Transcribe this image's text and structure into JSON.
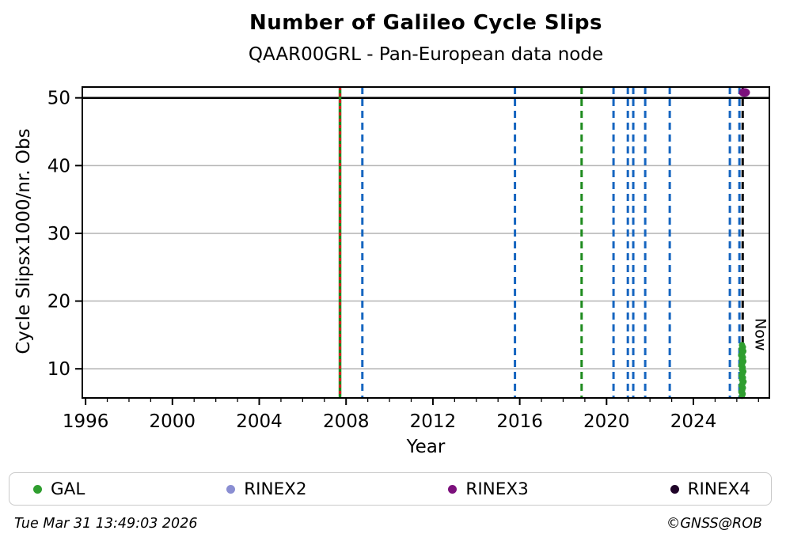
{
  "header": {
    "title": "Number of Galileo Cycle Slips",
    "subtitle": "QAAR00GRL - Pan-European data node"
  },
  "footer": {
    "timestamp": "Tue Mar 31 13:49:03 2026",
    "credit": "©GNSS@ROB"
  },
  "legend": [
    {
      "label": "GAL",
      "color": "#2f9e2f"
    },
    {
      "label": "RINEX2",
      "color": "#8a8ed2"
    },
    {
      "label": "RINEX3",
      "color": "#7c107c"
    },
    {
      "label": "RINEX4",
      "color": "#1f0328"
    }
  ],
  "chart_data": {
    "type": "scatter",
    "title": "Number of Galileo Cycle Slips",
    "subtitle": "QAAR00GRL - Pan-European data node",
    "xlabel": "Year",
    "ylabel": "Cycle Slipsx1000/nr. Obs",
    "xlim": [
      1995.85,
      2027.5
    ],
    "ylim": [
      5.7,
      51.6
    ],
    "xticks": [
      1996,
      2000,
      2004,
      2008,
      2012,
      2016,
      2020,
      2024
    ],
    "yticks": [
      10,
      20,
      30,
      40,
      50
    ],
    "minor_x_step": 1,
    "grid": "horizontal",
    "grid_color": "#b3b3b3",
    "axis_color": "#000000",
    "hline": {
      "y": 50,
      "color": "#000000",
      "width": 2.5
    },
    "now_line": {
      "x": 2026.27,
      "label": "Now",
      "color": "#000000",
      "style": "dashed",
      "width": 3
    },
    "event_lines": [
      {
        "x": 2007.72,
        "color": "#1e8b1e",
        "style": "solid",
        "width": 3.5
      },
      {
        "x": 2007.72,
        "color": "#d62121",
        "style": "dotted",
        "width": 3
      },
      {
        "x": 2008.75,
        "color": "#1565c0",
        "style": "dashed",
        "width": 3
      },
      {
        "x": 2015.78,
        "color": "#1565c0",
        "style": "dashed",
        "width": 3
      },
      {
        "x": 2018.85,
        "color": "#1e8b1e",
        "style": "dashed",
        "width": 3
      },
      {
        "x": 2020.32,
        "color": "#1565c0",
        "style": "dashed",
        "width": 3
      },
      {
        "x": 2020.98,
        "color": "#1565c0",
        "style": "dashed",
        "width": 3
      },
      {
        "x": 2021.23,
        "color": "#1565c0",
        "style": "dashed",
        "width": 3
      },
      {
        "x": 2021.78,
        "color": "#1565c0",
        "style": "dashed",
        "width": 3
      },
      {
        "x": 2022.91,
        "color": "#1565c0",
        "style": "dashed",
        "width": 3
      },
      {
        "x": 2025.68,
        "color": "#1565c0",
        "style": "dashed",
        "width": 3
      },
      {
        "x": 2026.12,
        "color": "#1565c0",
        "style": "dashed",
        "width": 3
      }
    ],
    "series": [
      {
        "name": "GAL",
        "color": "#2f9e2f",
        "marker": "circle",
        "points": [
          [
            2026.24,
            13.5
          ],
          [
            2026.28,
            13.2
          ],
          [
            2026.22,
            12.9
          ],
          [
            2026.3,
            12.6
          ],
          [
            2026.25,
            12.3
          ],
          [
            2026.2,
            12.0
          ],
          [
            2026.28,
            11.7
          ],
          [
            2026.23,
            11.4
          ],
          [
            2026.3,
            11.1
          ],
          [
            2026.25,
            10.8
          ],
          [
            2026.21,
            10.5
          ],
          [
            2026.27,
            10.2
          ],
          [
            2026.24,
            9.9
          ],
          [
            2026.3,
            9.6
          ],
          [
            2026.26,
            9.3
          ],
          [
            2026.22,
            9.0
          ],
          [
            2026.28,
            8.7
          ],
          [
            2026.24,
            8.4
          ],
          [
            2026.31,
            8.1
          ],
          [
            2026.26,
            7.8
          ],
          [
            2026.22,
            7.5
          ],
          [
            2026.28,
            7.2
          ],
          [
            2026.25,
            6.9
          ],
          [
            2026.21,
            6.6
          ],
          [
            2026.27,
            6.3
          ],
          [
            2026.24,
            6.0
          ]
        ]
      },
      {
        "name": "RINEX2",
        "color": "#8a8ed2",
        "marker": "circle",
        "points": []
      },
      {
        "name": "RINEX3",
        "color": "#7c107c",
        "marker": "ellipse",
        "points": [
          [
            2026.35,
            50.8
          ]
        ]
      },
      {
        "name": "RINEX4",
        "color": "#1f0328",
        "marker": "circle",
        "points": []
      }
    ]
  }
}
